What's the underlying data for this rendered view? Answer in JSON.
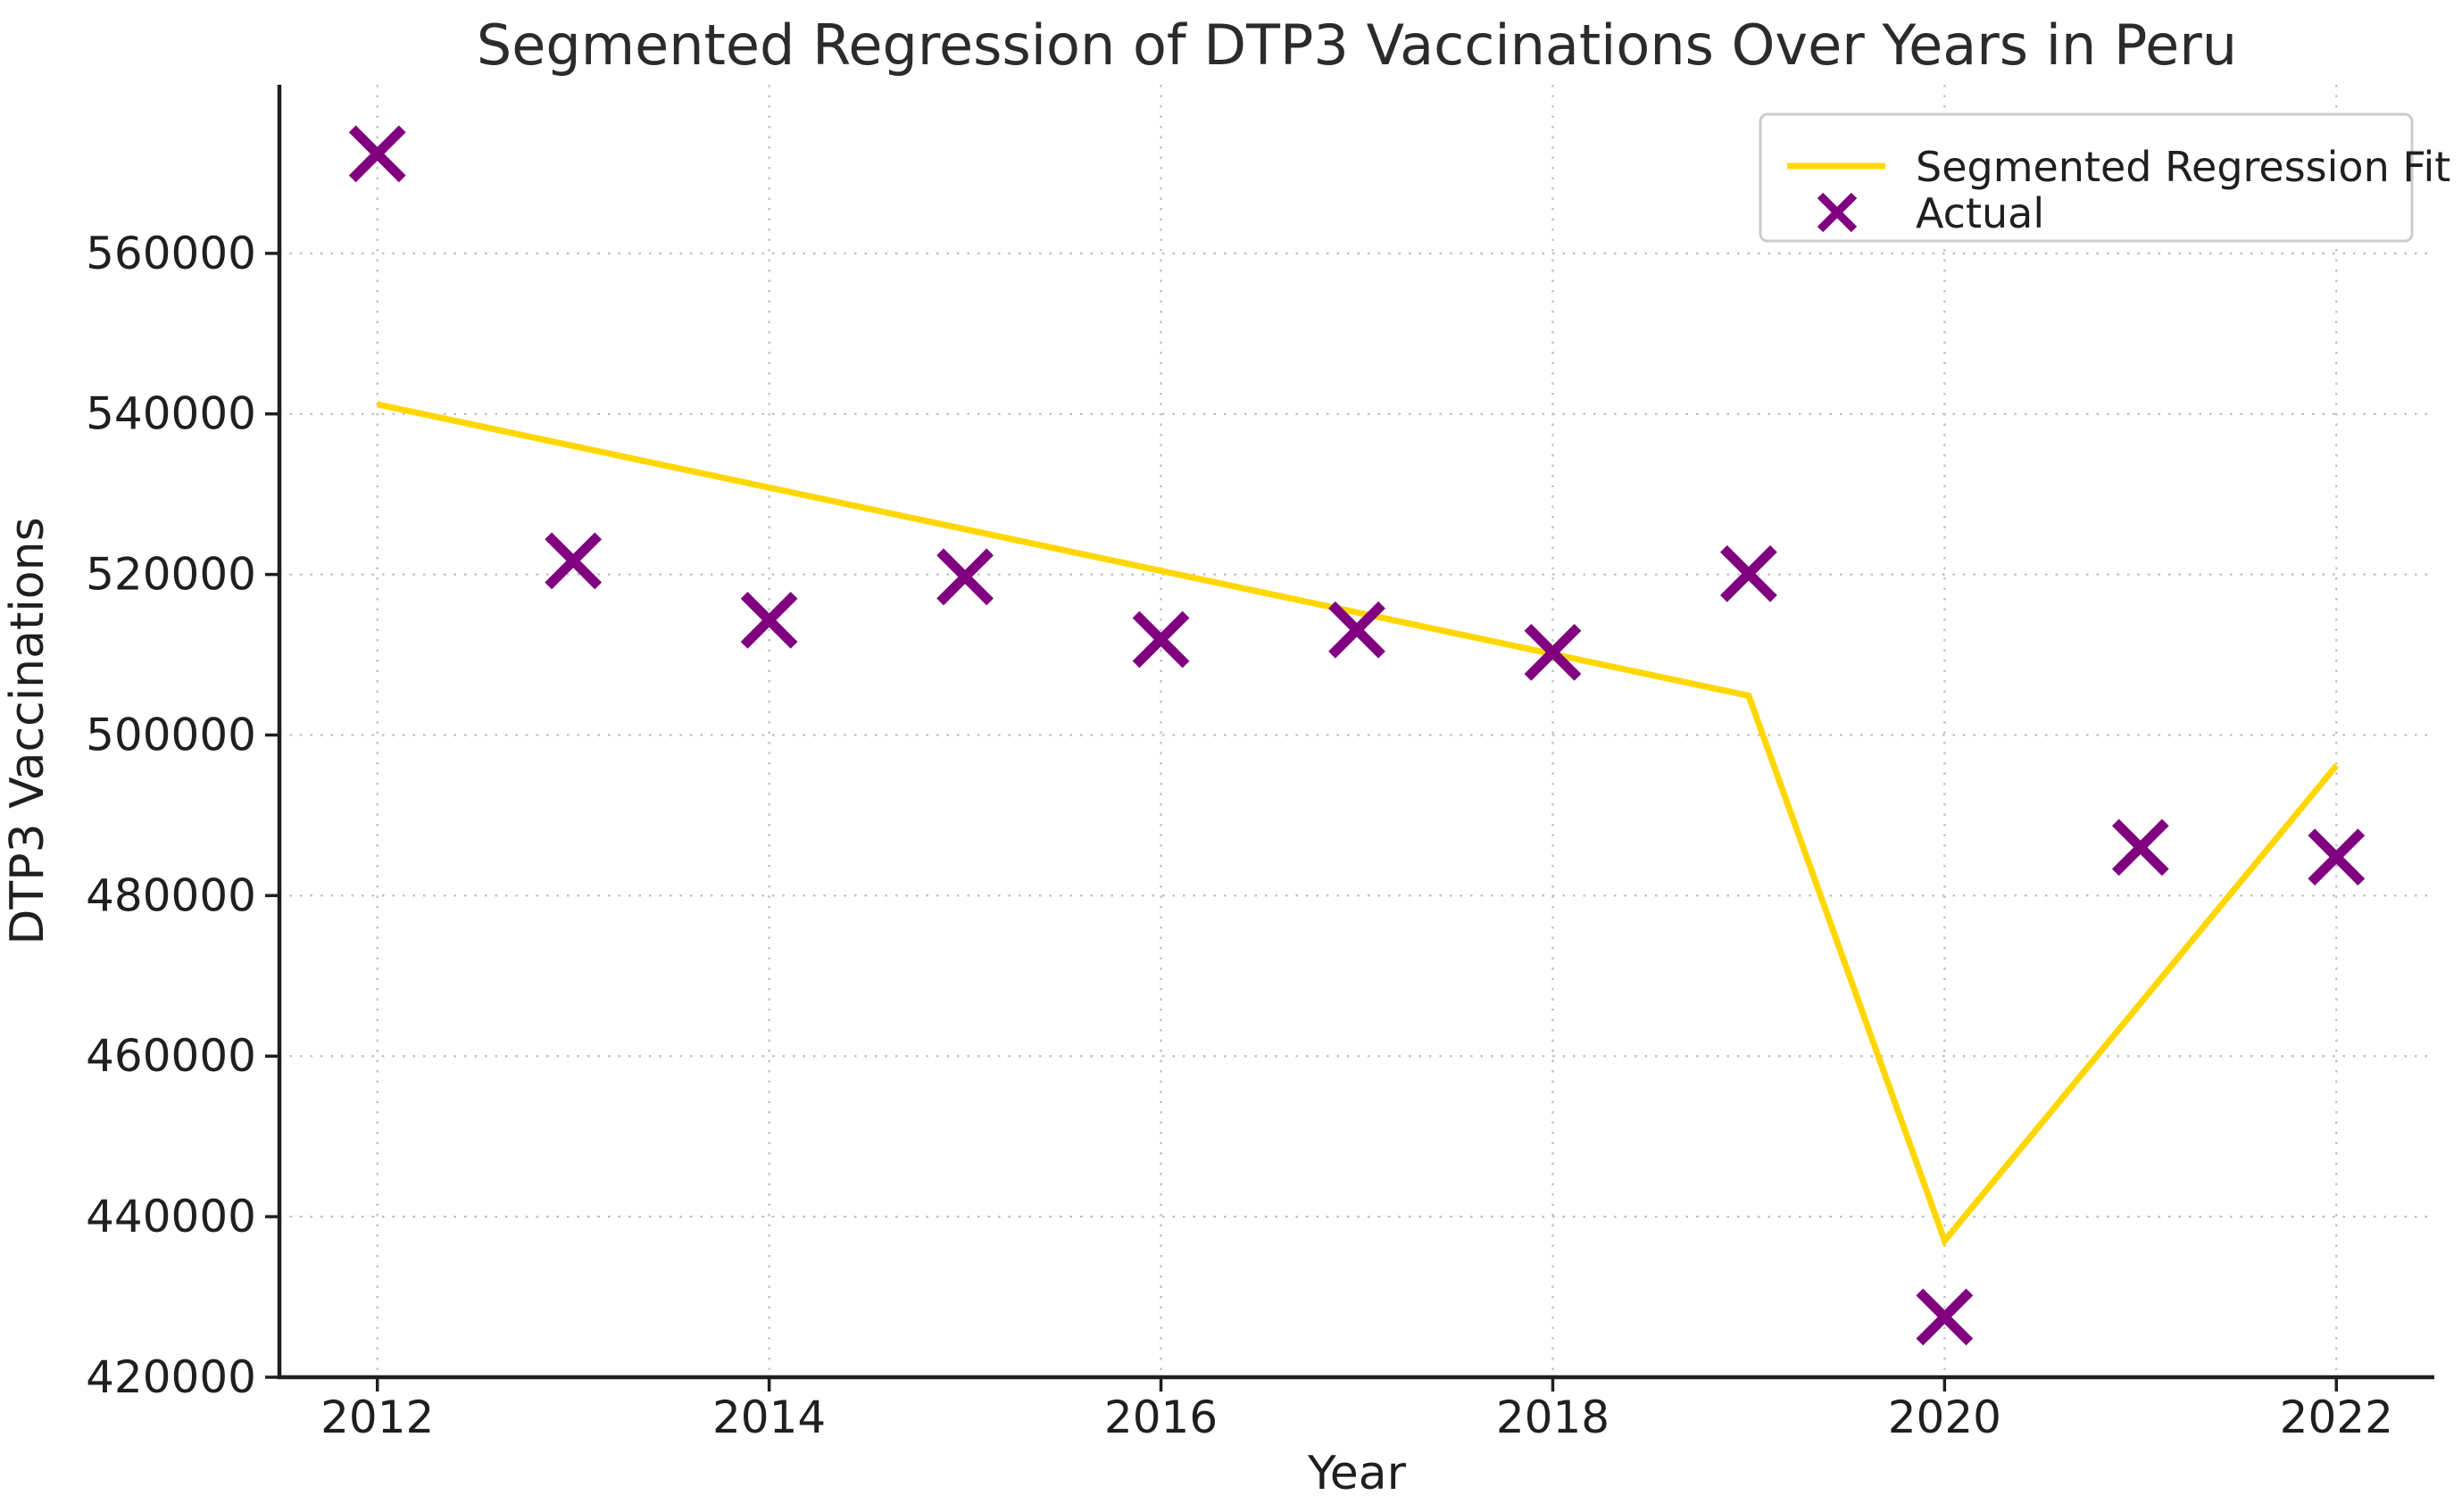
{
  "figure": {
    "background": "#ffffff",
    "text_color": "#1f1f1f",
    "axis_color": "#1f1f1f",
    "grid_color": "#bdbdbd"
  },
  "chart_data": {
    "type": "scatter",
    "title": "Segmented Regression of DTP3 Vaccinations Over Years in Peru",
    "xlabel": "Year",
    "ylabel": "DTP3 Vaccinations",
    "xlim": [
      2011.5,
      2022.5
    ],
    "ylim": [
      420000,
      581000
    ],
    "xticks": [
      2012,
      2014,
      2016,
      2018,
      2020,
      2022
    ],
    "yticks": [
      420000,
      440000,
      460000,
      480000,
      500000,
      520000,
      540000,
      560000
    ],
    "grid": {
      "show": true,
      "style": "dotted",
      "color": "#bdbdbd"
    },
    "legend": {
      "position": "upper-right",
      "background": "#ffffff",
      "border_color": "#cccccc"
    },
    "series": [
      {
        "name": "Segmented Regression Fit",
        "type": "line",
        "color": "#FFD700",
        "points": [
          [
            2012,
            541200
          ],
          [
            2019,
            504900
          ],
          [
            2020,
            437000
          ],
          [
            2022,
            496200
          ]
        ]
      },
      {
        "name": "Actual",
        "type": "scatter",
        "marker": "x",
        "color": "#800080",
        "x": [
          2012,
          2013,
          2014,
          2015,
          2016,
          2017,
          2018,
          2019,
          2020,
          2021,
          2022
        ],
        "y": [
          572400,
          521700,
          514300,
          519700,
          511900,
          513100,
          510300,
          520100,
          427500,
          486000,
          484800
        ]
      }
    ]
  }
}
